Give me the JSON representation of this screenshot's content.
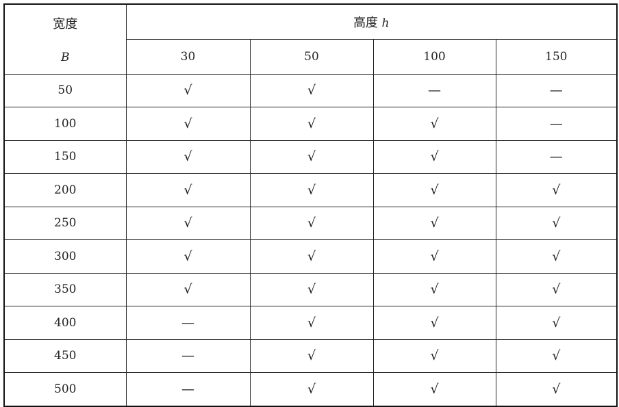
{
  "table": {
    "width_header": "宽度",
    "width_symbol": "B",
    "height_header": "高度",
    "height_symbol": "h",
    "height_columns": [
      "30",
      "50",
      "100",
      "150"
    ],
    "rows": [
      {
        "B": "50",
        "cells": [
          "√",
          "√",
          "—",
          "—"
        ]
      },
      {
        "B": "100",
        "cells": [
          "√",
          "√",
          "√",
          "—"
        ]
      },
      {
        "B": "150",
        "cells": [
          "√",
          "√",
          "√",
          "—"
        ]
      },
      {
        "B": "200",
        "cells": [
          "√",
          "√",
          "√",
          "√"
        ]
      },
      {
        "B": "250",
        "cells": [
          "√",
          "√",
          "√",
          "√"
        ]
      },
      {
        "B": "300",
        "cells": [
          "√",
          "√",
          "√",
          "√"
        ]
      },
      {
        "B": "350",
        "cells": [
          "√",
          "√",
          "√",
          "√"
        ]
      },
      {
        "B": "400",
        "cells": [
          "—",
          "√",
          "√",
          "√"
        ]
      },
      {
        "B": "450",
        "cells": [
          "—",
          "√",
          "√",
          "√"
        ]
      },
      {
        "B": "500",
        "cells": [
          "—",
          "√",
          "√",
          "√"
        ]
      }
    ]
  }
}
